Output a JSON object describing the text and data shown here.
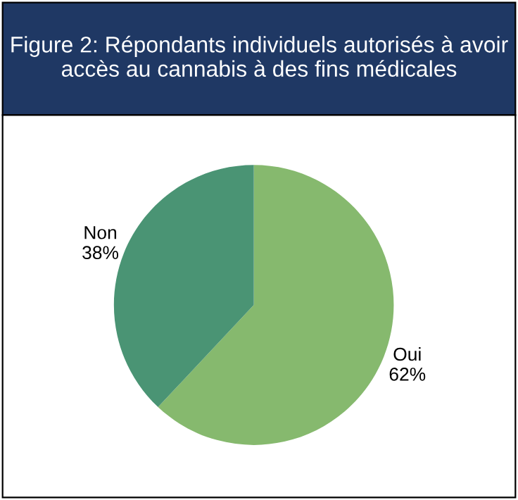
{
  "chart_data": {
    "type": "pie",
    "title": "Figure 2: Répondants individuels autorisés à avoir accès au cannabis à des fins médicales",
    "categories": [
      "Oui",
      "Non"
    ],
    "values": [
      62,
      38
    ],
    "colors": [
      "#86b96e",
      "#4a9474"
    ],
    "value_labels": [
      "62%",
      "38%"
    ],
    "legend": false
  }
}
